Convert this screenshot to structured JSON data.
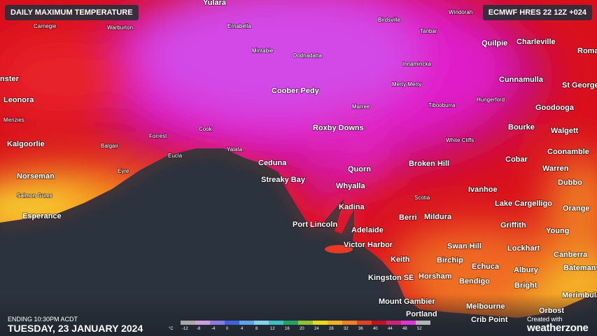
{
  "header": {
    "title": "DAILY MAXIMUM TEMPERATURE",
    "model": "ECMWF HRES 22 12Z +024"
  },
  "places": [
    "Yulara",
    "Carnegie",
    "Warburton",
    "Ernabella",
    "Birdsville",
    "Windorah",
    "Tanbar",
    "Quilpie",
    "Charleville",
    "Roma",
    "Mintabie",
    "Oodnadatta",
    "Innamincka",
    "Cunnamulla",
    "St George",
    "nster",
    "Leonora",
    "Coober Pedy",
    "Merty Merty",
    "Hungerford",
    "Marree",
    "Tibooburra",
    "Goodooga",
    "Menzies",
    "Roxby Downs",
    "Cook",
    "Forrest",
    "White Cliffs",
    "Bourke",
    "Walgett",
    "Kalgoorlie",
    "Balgair",
    "Yalata",
    "Eucla",
    "Coonamble",
    "Ceduna",
    "Norseman",
    "Eyre",
    "Quorn",
    "Broken Hill",
    "Cobar",
    "Warren",
    "Streaky Bay",
    "Whyalla",
    "Ivanhoe",
    "Dubbo",
    "Salmon Gums",
    "Scotia",
    "Lake Cargelligo",
    "Orange",
    "Kadina",
    "Esperance",
    "Berri",
    "Mildura",
    "Griffith",
    "Young",
    "Port Lincoln",
    "Adelaide",
    "Swan Hill",
    "Lockhart",
    "Canberra",
    "Victor Harbor",
    "Keith",
    "Birchip",
    "Echuca",
    "Albury",
    "Batemans",
    "Kingston SE",
    "Horsham",
    "Bendigo",
    "Bright",
    "Merimbula",
    "Melbourne",
    "Mount Gambier",
    "Orbost",
    "Portland",
    "Crib Point"
  ],
  "legend": {
    "unit": "°C",
    "ticks": [
      -12,
      -8,
      -4,
      0,
      4,
      8,
      12,
      16,
      20,
      24,
      28,
      32,
      36,
      40,
      44,
      48,
      52
    ],
    "colors": [
      "#a8a8a8",
      "#c9a0dc",
      "#8e7be0",
      "#3f62dc",
      "#5ea4ea",
      "#84d2ec",
      "#3fbfbf",
      "#2a9f62",
      "#92c233",
      "#e8d820",
      "#f2b024",
      "#f08122",
      "#e04321",
      "#c01224",
      "#d02276",
      "#e233d4",
      "#b4b4b4"
    ]
  },
  "footer": {
    "ending": "ENDING 10:30PM ACDT",
    "date": "TUESDAY, 23 JANUARY 2024",
    "created": "Created with",
    "brand": "weatherzone"
  }
}
